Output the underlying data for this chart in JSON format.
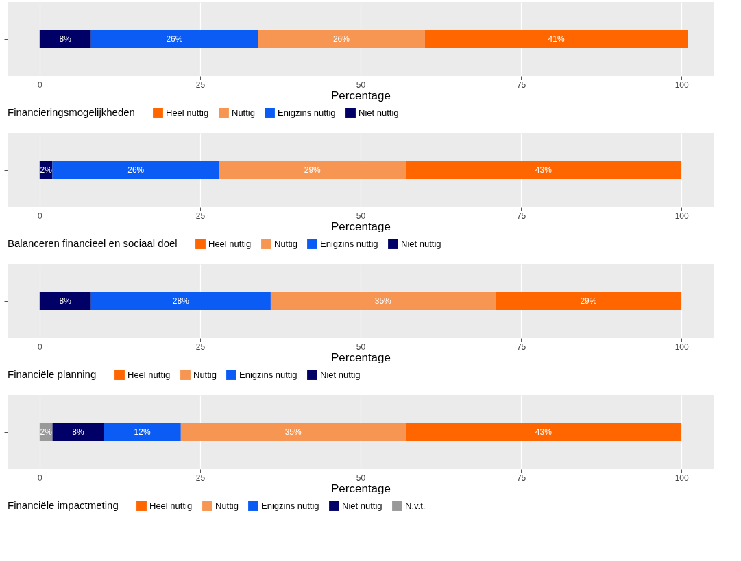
{
  "chart_data": [
    {
      "type": "bar",
      "orientation": "horizontal",
      "stacked": true,
      "categories": [
        null
      ],
      "xlabel": "Percentage",
      "legend_title": "Financieringsmogelijkheden",
      "xlim": [
        -5,
        105
      ],
      "xticks": [
        0,
        25,
        50,
        75,
        100
      ],
      "grid": "x",
      "legend": "bottom",
      "tick_labels": "x",
      "series": [
        {
          "name": "Niet nuttig",
          "color": "#000066",
          "values": [
            8
          ],
          "value_labels": [
            "8%"
          ]
        },
        {
          "name": "Enigzins nuttig",
          "color": "#0a5cf5",
          "values": [
            26
          ],
          "value_labels": [
            "26%"
          ]
        },
        {
          "name": "Nuttig",
          "color": "#f79552",
          "values": [
            26
          ],
          "value_labels": [
            "26%"
          ]
        },
        {
          "name": "Heel nuttig",
          "color": "#ff6600",
          "values": [
            41
          ],
          "value_labels": [
            "41%"
          ]
        }
      ]
    },
    {
      "type": "bar",
      "orientation": "horizontal",
      "stacked": true,
      "categories": [
        null
      ],
      "xlabel": "Percentage",
      "legend_title": "Balanceren financieel en sociaal doel",
      "xlim": [
        -5,
        105
      ],
      "xticks": [
        0,
        25,
        50,
        75,
        100
      ],
      "grid": "x",
      "legend": "bottom",
      "tick_labels": "x",
      "series": [
        {
          "name": "Niet nuttig",
          "color": "#000066",
          "values": [
            2
          ],
          "value_labels": [
            "2%"
          ]
        },
        {
          "name": "Enigzins nuttig",
          "color": "#0a5cf5",
          "values": [
            26
          ],
          "value_labels": [
            "26%"
          ]
        },
        {
          "name": "Nuttig",
          "color": "#f79552",
          "values": [
            29
          ],
          "value_labels": [
            "29%"
          ]
        },
        {
          "name": "Heel nuttig",
          "color": "#ff6600",
          "values": [
            43
          ],
          "value_labels": [
            "43%"
          ]
        }
      ]
    },
    {
      "type": "bar",
      "orientation": "horizontal",
      "stacked": true,
      "categories": [
        null
      ],
      "xlabel": "Percentage",
      "legend_title": "Financiële planning",
      "xlim": [
        -5,
        105
      ],
      "xticks": [
        0,
        25,
        50,
        75,
        100
      ],
      "grid": "x",
      "legend": "bottom",
      "tick_labels": "x",
      "series": [
        {
          "name": "Niet nuttig",
          "color": "#000066",
          "values": [
            8
          ],
          "value_labels": [
            "8%"
          ]
        },
        {
          "name": "Enigzins nuttig",
          "color": "#0a5cf5",
          "values": [
            28
          ],
          "value_labels": [
            "28%"
          ]
        },
        {
          "name": "Nuttig",
          "color": "#f79552",
          "values": [
            35
          ],
          "value_labels": [
            "35%"
          ]
        },
        {
          "name": "Heel nuttig",
          "color": "#ff6600",
          "values": [
            29
          ],
          "value_labels": [
            "29%"
          ]
        }
      ]
    },
    {
      "type": "bar",
      "orientation": "horizontal",
      "stacked": true,
      "categories": [
        null
      ],
      "xlabel": "Percentage",
      "legend_title": "Financiële impactmeting",
      "xlim": [
        -5,
        105
      ],
      "xticks": [
        0,
        25,
        50,
        75,
        100
      ],
      "grid": "x",
      "legend": "bottom",
      "tick_labels": "x",
      "series": [
        {
          "name": "N.v.t.",
          "color": "#999999",
          "values": [
            2
          ],
          "value_labels": [
            "2%"
          ]
        },
        {
          "name": "Niet nuttig",
          "color": "#000066",
          "values": [
            8
          ],
          "value_labels": [
            "8%"
          ]
        },
        {
          "name": "Enigzins nuttig",
          "color": "#0a5cf5",
          "values": [
            12
          ],
          "value_labels": [
            "12%"
          ]
        },
        {
          "name": "Nuttig",
          "color": "#f79552",
          "values": [
            35
          ],
          "value_labels": [
            "35%"
          ]
        },
        {
          "name": "Heel nuttig",
          "color": "#ff6600",
          "values": [
            43
          ],
          "value_labels": [
            "43%"
          ]
        }
      ]
    }
  ]
}
